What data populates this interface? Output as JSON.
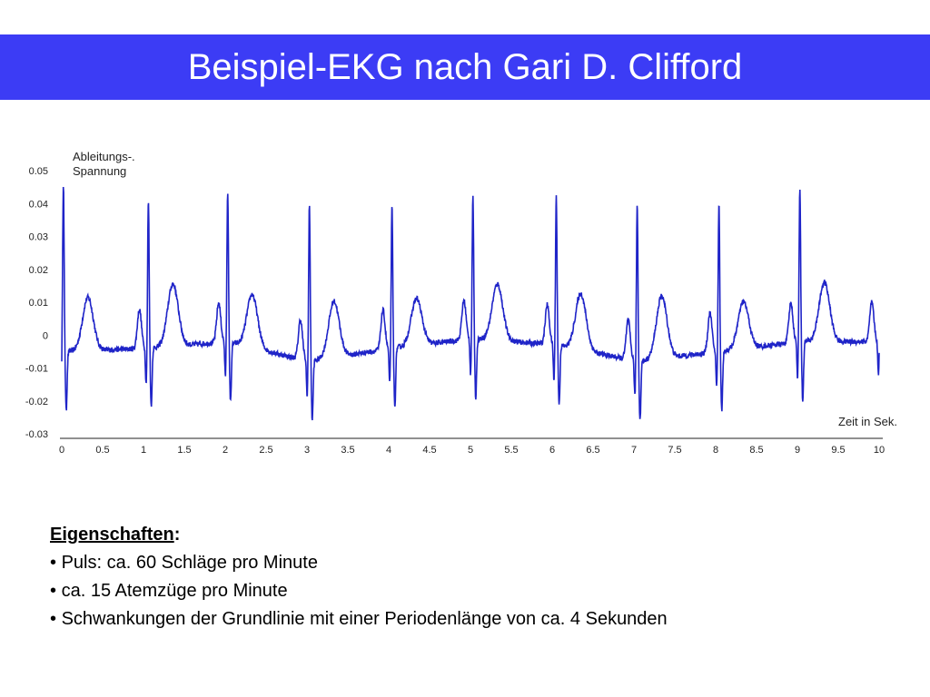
{
  "slide": {
    "title": "Beispiel-EKG nach Gari D. Clifford"
  },
  "notes": {
    "heading": "Eigenschaften",
    "colon": ":",
    "bullet": "•",
    "items": [
      "Puls: ca. 60 Schläge pro Minute",
      "ca. 15 Atemzüge pro Minute",
      "Schwankungen der Grundlinie mit einer Periodenlänge von ca. 4 Sekunden"
    ]
  },
  "colors": {
    "title_bar": "#3c3cf5",
    "trace": "#1f24c8"
  },
  "chart_data": {
    "type": "line",
    "ylabel_lines": [
      "Ableitungs-.",
      "Spannung"
    ],
    "xlabel": "Zeit in Sek.",
    "xlim": [
      0,
      10
    ],
    "ylim": [
      -0.03,
      0.05
    ],
    "x_ticks": [
      "0",
      "0.5",
      "1",
      "1.5",
      "2",
      "2.5",
      "3",
      "3.5",
      "4",
      "4.5",
      "5",
      "5.5",
      "6",
      "6.5",
      "7",
      "7.5",
      "8",
      "8.5",
      "9",
      "9.5",
      "10"
    ],
    "y_ticks": [
      "0.05",
      "0.04",
      "0.03",
      "0.02",
      "0.01",
      "0",
      "-0.01",
      "-0.02",
      "-0.03"
    ],
    "grid": false,
    "series": [
      {
        "beat_times": [
          0.02,
          1.06,
          2.03,
          3.03,
          4.04,
          5.03,
          6.05,
          7.04,
          8.04,
          9.03,
          10.02
        ],
        "r_peaks": [
          0.046,
          0.041,
          0.044,
          0.04,
          0.039,
          0.042,
          0.043,
          0.04,
          0.04,
          0.045,
          0.044
        ],
        "t_peaks": [
          0.012,
          0.016,
          0.015,
          0.01,
          0.011,
          0.017,
          0.015,
          0.012,
          0.01,
          0.017,
          0.011
        ],
        "baseline": [
          -0.005,
          -0.004,
          -0.002,
          -0.008,
          -0.004,
          -0.001,
          -0.003,
          -0.008,
          -0.005,
          -0.002,
          -0.002
        ]
      }
    ]
  }
}
